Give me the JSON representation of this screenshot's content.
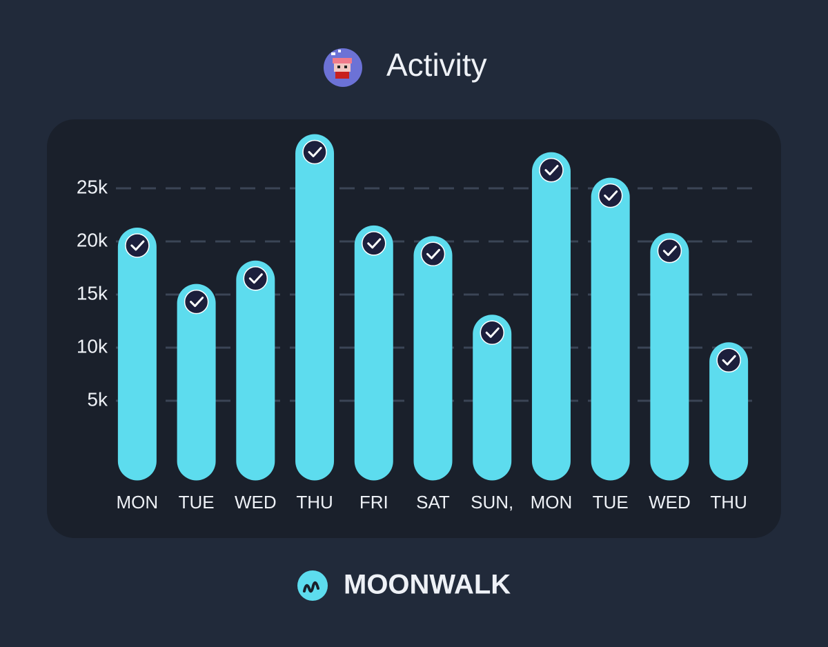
{
  "chart_data": {
    "type": "bar",
    "title": "Activity",
    "categories": [
      "MON",
      "TUE",
      "WED",
      "THU",
      "FRI",
      "SAT",
      "SUN,",
      "MON",
      "TUE",
      "WED",
      "THU"
    ],
    "values": [
      21300,
      16000,
      18200,
      30100,
      21500,
      20500,
      13100,
      28400,
      26000,
      20800,
      10500
    ],
    "color": "#5ddcee",
    "ylim": [
      -2500,
      30500
    ],
    "yticks": [
      {
        "value": 5000,
        "label": "5k"
      },
      {
        "value": 10000,
        "label": "10k"
      },
      {
        "value": 15000,
        "label": "15k"
      },
      {
        "value": 20000,
        "label": "20k"
      },
      {
        "value": 25000,
        "label": "25k"
      }
    ],
    "grid": true
  },
  "footer": {
    "brand": "MOONWALK"
  }
}
